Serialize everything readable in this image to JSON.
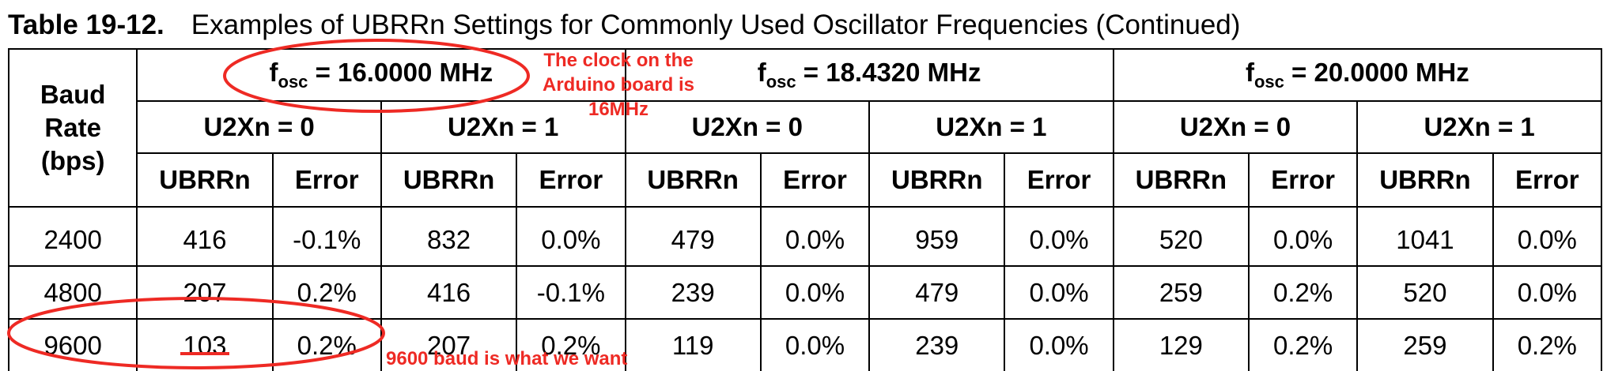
{
  "caption": {
    "number": "Table 19-12.",
    "title": "Examples of UBRRn Settings for Commonly Used Oscillator Frequencies (Continued)"
  },
  "table": {
    "baud_header": [
      "Baud",
      "Rate",
      "(bps)"
    ],
    "fosc_prefix": "f",
    "fosc_sub": "osc",
    "oscillators": [
      " = 16.0000 MHz",
      " = 18.4320 MHz",
      " = 20.0000 MHz"
    ],
    "u2x_labels": [
      "U2Xn = 0",
      "U2Xn = 1",
      "U2Xn = 0",
      "U2Xn = 1",
      "U2Xn = 0",
      "U2Xn = 1"
    ],
    "col_ubrr": "UBRRn",
    "col_error": "Error",
    "rows": [
      [
        "2400",
        "416",
        "-0.1%",
        "832",
        "0.0%",
        "479",
        "0.0%",
        "959",
        "0.0%",
        "520",
        "0.0%",
        "1041",
        "0.0%"
      ],
      [
        "4800",
        "207",
        "0.2%",
        "416",
        "-0.1%",
        "239",
        "0.0%",
        "479",
        "0.0%",
        "259",
        "0.2%",
        "520",
        "0.0%"
      ],
      [
        "9600",
        "103",
        "0.2%",
        "207",
        "0.2%",
        "119",
        "0.0%",
        "239",
        "0.0%",
        "129",
        "0.2%",
        "259",
        "0.2%"
      ]
    ]
  },
  "annotations": {
    "clock_note": [
      "The clock on the",
      "Arduino board is",
      "16MHz"
    ],
    "baud_note": "9600 baud is what we want",
    "color": "#ee2a24"
  }
}
